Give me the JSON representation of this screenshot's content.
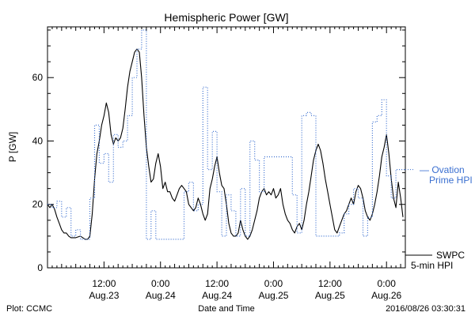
{
  "chart_data": {
    "type": "line",
    "title": "Hemispheric Power [GW]",
    "xlabel": "Date and Time",
    "ylabel": "P [GW]",
    "ylim": [
      0,
      76
    ],
    "xlim": [
      0,
      76
    ],
    "yticks": [
      0,
      20,
      40,
      60
    ],
    "grid": false,
    "x_unit": "hours since 2016/08/23 00:00",
    "xticks": [
      {
        "x": 12,
        "time": "12:00",
        "date": "Aug.23"
      },
      {
        "x": 24,
        "time": "0:00",
        "date": "Aug.24"
      },
      {
        "x": 36,
        "time": "12:00",
        "date": "Aug.24"
      },
      {
        "x": 48,
        "time": "0:00",
        "date": "Aug.25"
      },
      {
        "x": 60,
        "time": "12:00",
        "date": "Aug.25"
      },
      {
        "x": 72,
        "time": "0:00",
        "date": "Aug.26"
      }
    ],
    "footer": {
      "left": "Plot: CCMC",
      "right": "2016/08/26 03:30:31"
    },
    "series": [
      {
        "name": "SWPC 5-min HPI",
        "legend_lines": [
          "SWPC",
          "5-min HPI"
        ],
        "color": "#000000",
        "style": "solid",
        "points": [
          [
            0,
            20
          ],
          [
            0.5,
            19
          ],
          [
            1,
            20
          ],
          [
            1.5,
            18.5
          ],
          [
            2,
            16
          ],
          [
            2.5,
            14
          ],
          [
            3,
            12
          ],
          [
            3.5,
            11
          ],
          [
            4,
            11
          ],
          [
            4.5,
            10
          ],
          [
            5,
            9.5
          ],
          [
            6,
            9.5
          ],
          [
            7,
            10
          ],
          [
            8,
            9
          ],
          [
            8.5,
            9
          ],
          [
            9,
            10
          ],
          [
            9.5,
            17
          ],
          [
            10,
            28
          ],
          [
            10.5,
            36
          ],
          [
            11,
            40
          ],
          [
            11.5,
            45
          ],
          [
            12,
            48
          ],
          [
            12.5,
            52
          ],
          [
            13,
            49
          ],
          [
            13.5,
            42
          ],
          [
            14,
            39
          ],
          [
            14.5,
            41
          ],
          [
            15,
            40
          ],
          [
            15.5,
            41
          ],
          [
            16,
            44
          ],
          [
            16.5,
            50
          ],
          [
            17,
            57
          ],
          [
            17.5,
            62
          ],
          [
            18,
            65
          ],
          [
            18.5,
            68
          ],
          [
            19,
            69
          ],
          [
            19.5,
            68
          ],
          [
            20,
            60
          ],
          [
            20.5,
            48
          ],
          [
            21,
            38
          ],
          [
            21.5,
            32
          ],
          [
            22,
            27
          ],
          [
            22.5,
            28
          ],
          [
            23,
            33
          ],
          [
            23.5,
            36
          ],
          [
            24,
            32
          ],
          [
            24.5,
            25
          ],
          [
            25,
            27
          ],
          [
            25.5,
            24
          ],
          [
            26,
            24
          ],
          [
            26.5,
            22
          ],
          [
            27,
            21
          ],
          [
            27.5,
            23
          ],
          [
            28,
            25
          ],
          [
            28.5,
            26
          ],
          [
            29,
            25
          ],
          [
            29.5,
            24
          ],
          [
            30,
            20
          ],
          [
            30.5,
            19
          ],
          [
            31,
            18
          ],
          [
            31.5,
            19
          ],
          [
            32,
            22
          ],
          [
            32.5,
            20
          ],
          [
            33,
            17
          ],
          [
            33.5,
            15
          ],
          [
            34,
            17
          ],
          [
            34.5,
            25
          ],
          [
            35,
            28
          ],
          [
            35.5,
            32
          ],
          [
            36,
            35
          ],
          [
            36.5,
            30
          ],
          [
            37,
            26
          ],
          [
            37.5,
            25
          ],
          [
            38,
            20
          ],
          [
            38.5,
            14
          ],
          [
            39,
            11
          ],
          [
            39.5,
            10
          ],
          [
            40,
            10
          ],
          [
            40.5,
            11
          ],
          [
            41,
            15
          ],
          [
            41.5,
            12
          ],
          [
            42,
            10
          ],
          [
            42.5,
            9
          ],
          [
            43,
            10
          ],
          [
            43.5,
            12
          ],
          [
            44,
            15
          ],
          [
            44.5,
            18
          ],
          [
            45,
            22
          ],
          [
            45.5,
            24
          ],
          [
            46,
            25
          ],
          [
            46.5,
            23
          ],
          [
            47,
            24
          ],
          [
            47.5,
            23
          ],
          [
            48,
            25
          ],
          [
            48.5,
            22
          ],
          [
            49,
            23
          ],
          [
            49.5,
            25
          ],
          [
            50,
            20
          ],
          [
            50.5,
            17
          ],
          [
            51,
            15
          ],
          [
            51.5,
            14
          ],
          [
            52,
            12
          ],
          [
            52.5,
            11
          ],
          [
            53,
            13
          ],
          [
            53.5,
            14
          ],
          [
            54,
            12
          ],
          [
            54.5,
            15
          ],
          [
            55,
            20
          ],
          [
            55.5,
            24
          ],
          [
            56,
            29
          ],
          [
            56.5,
            34
          ],
          [
            57,
            37
          ],
          [
            57.5,
            39
          ],
          [
            58,
            37
          ],
          [
            58.5,
            33
          ],
          [
            59,
            28
          ],
          [
            59.5,
            24
          ],
          [
            60,
            20
          ],
          [
            60.5,
            16
          ],
          [
            61,
            12
          ],
          [
            61.5,
            11
          ],
          [
            62,
            13
          ],
          [
            62.5,
            15
          ],
          [
            63,
            17
          ],
          [
            63.5,
            18
          ],
          [
            64,
            20
          ],
          [
            64.5,
            22
          ],
          [
            65,
            20
          ],
          [
            65.5,
            24
          ],
          [
            66,
            26
          ],
          [
            66.5,
            25
          ],
          [
            67,
            22
          ],
          [
            67.5,
            18
          ],
          [
            68,
            16
          ],
          [
            68.5,
            15
          ],
          [
            69,
            17
          ],
          [
            69.5,
            20
          ],
          [
            70,
            24
          ],
          [
            70.5,
            29
          ],
          [
            71,
            35
          ],
          [
            71.5,
            38
          ],
          [
            72,
            42
          ],
          [
            72.5,
            36
          ],
          [
            73,
            28
          ],
          [
            73.5,
            22
          ],
          [
            74,
            19
          ],
          [
            74.5,
            27
          ],
          [
            75,
            22
          ],
          [
            75.5,
            16
          ]
        ]
      },
      {
        "name": "Ovation Prime HPI",
        "legend_lines": [
          "Ovation",
          "Prime HPI"
        ],
        "color": "#3a6fd0",
        "style": "dotted",
        "points": [
          [
            0,
            20
          ],
          [
            1,
            20
          ],
          [
            1,
            19
          ],
          [
            2,
            19
          ],
          [
            2,
            21
          ],
          [
            3,
            21
          ],
          [
            3,
            16
          ],
          [
            4,
            16
          ],
          [
            4,
            19
          ],
          [
            5,
            19
          ],
          [
            5,
            10
          ],
          [
            6,
            10
          ],
          [
            6,
            12
          ],
          [
            7,
            12
          ],
          [
            7,
            9
          ],
          [
            9,
            9
          ],
          [
            9,
            22
          ],
          [
            10,
            22
          ],
          [
            10,
            45
          ],
          [
            11,
            45
          ],
          [
            11,
            33
          ],
          [
            12,
            33
          ],
          [
            12,
            36
          ],
          [
            13,
            36
          ],
          [
            13,
            27
          ],
          [
            14,
            27
          ],
          [
            14,
            42
          ],
          [
            15,
            42
          ],
          [
            15,
            38
          ],
          [
            16,
            38
          ],
          [
            16,
            40
          ],
          [
            17,
            40
          ],
          [
            17,
            48
          ],
          [
            18,
            48
          ],
          [
            18,
            60
          ],
          [
            19,
            60
          ],
          [
            19,
            69
          ],
          [
            20,
            69
          ],
          [
            20,
            75
          ],
          [
            21,
            75
          ],
          [
            21,
            9
          ],
          [
            22,
            9
          ],
          [
            22,
            18
          ],
          [
            23,
            18
          ],
          [
            23,
            9
          ],
          [
            29,
            9
          ],
          [
            29,
            24
          ],
          [
            30,
            24
          ],
          [
            30,
            27
          ],
          [
            31,
            27
          ],
          [
            31,
            18
          ],
          [
            32,
            18
          ],
          [
            32,
            20
          ],
          [
            33,
            20
          ],
          [
            33,
            57
          ],
          [
            34,
            57
          ],
          [
            34,
            31
          ],
          [
            35,
            31
          ],
          [
            35,
            43
          ],
          [
            36,
            43
          ],
          [
            36,
            24
          ],
          [
            37,
            24
          ],
          [
            37,
            10
          ],
          [
            38,
            10
          ],
          [
            38,
            23
          ],
          [
            39,
            23
          ],
          [
            39,
            18
          ],
          [
            40,
            18
          ],
          [
            40,
            10
          ],
          [
            41,
            10
          ],
          [
            41,
            25
          ],
          [
            42,
            25
          ],
          [
            42,
            10
          ],
          [
            43,
            10
          ],
          [
            43,
            40
          ],
          [
            44,
            40
          ],
          [
            44,
            34
          ],
          [
            45,
            34
          ],
          [
            45,
            24
          ],
          [
            46,
            24
          ],
          [
            46,
            35
          ],
          [
            52,
            35
          ],
          [
            52,
            23
          ],
          [
            53,
            23
          ],
          [
            53,
            11
          ],
          [
            54,
            11
          ],
          [
            54,
            48
          ],
          [
            55,
            48
          ],
          [
            55,
            49
          ],
          [
            56,
            49
          ],
          [
            56,
            48
          ],
          [
            57,
            48
          ],
          [
            57,
            10
          ],
          [
            60,
            10
          ],
          [
            60,
            10
          ],
          [
            62,
            10
          ],
          [
            62,
            11
          ],
          [
            63,
            11
          ],
          [
            63,
            17
          ],
          [
            64,
            17
          ],
          [
            64,
            20
          ],
          [
            65,
            20
          ],
          [
            65,
            25
          ],
          [
            66,
            25
          ],
          [
            66,
            22
          ],
          [
            67,
            22
          ],
          [
            67,
            10
          ],
          [
            68,
            10
          ],
          [
            68,
            16
          ],
          [
            69,
            16
          ],
          [
            69,
            46
          ],
          [
            70,
            46
          ],
          [
            70,
            48
          ],
          [
            71,
            48
          ],
          [
            71,
            53
          ],
          [
            72,
            53
          ],
          [
            72,
            29
          ],
          [
            73,
            29
          ],
          [
            73,
            22
          ],
          [
            74,
            22
          ],
          [
            74,
            31
          ],
          [
            75,
            31
          ],
          [
            75,
            31
          ],
          [
            76,
            31
          ]
        ]
      }
    ]
  }
}
